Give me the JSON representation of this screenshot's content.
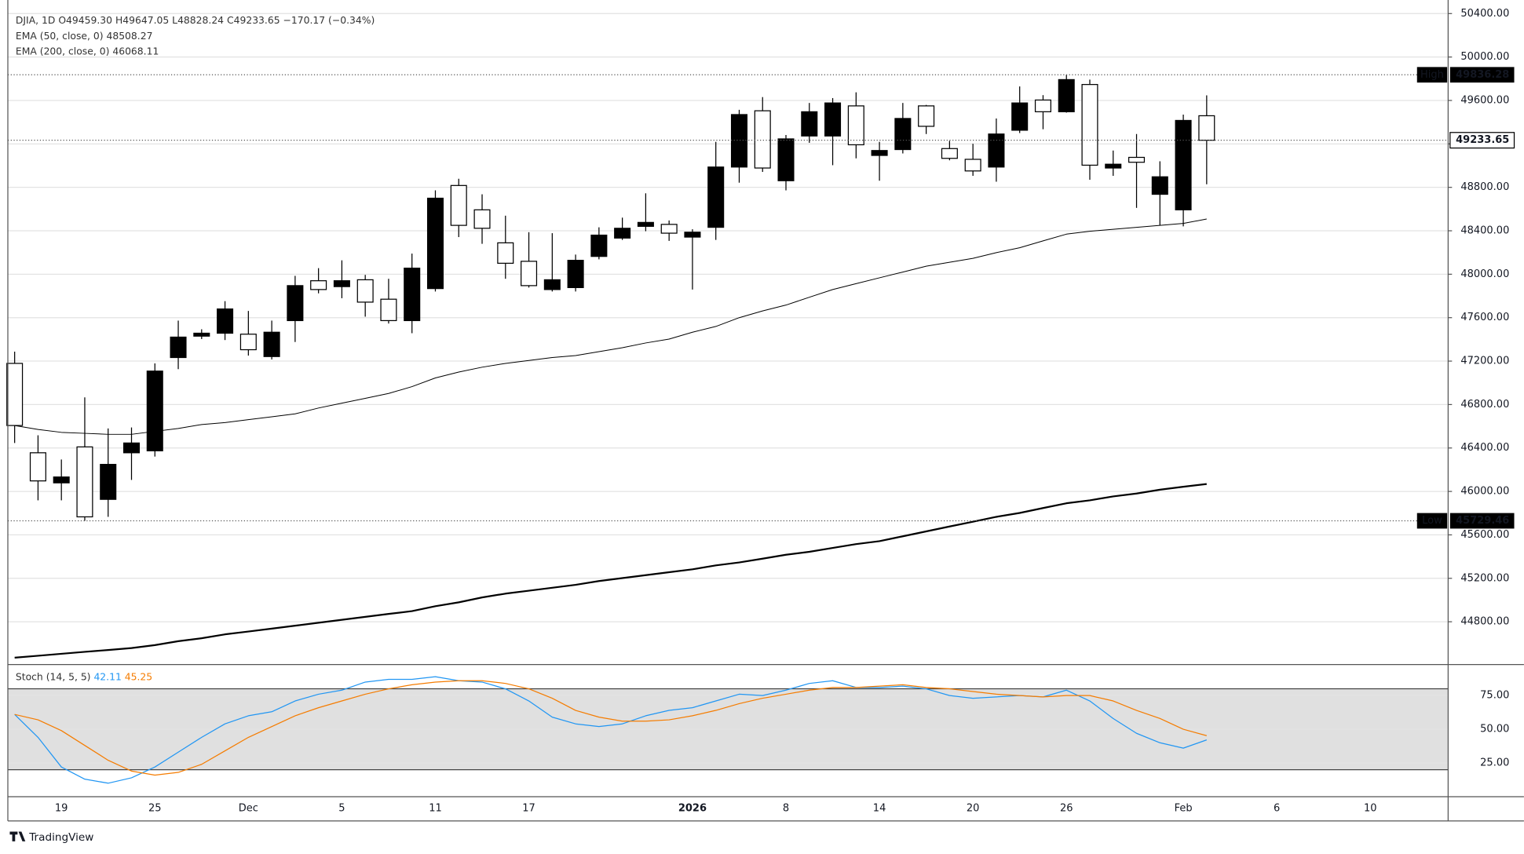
{
  "chart_data": [
    {
      "type": "candlestick",
      "title": "DJIA, 1D",
      "ohlc": [
        "O49459.30",
        "H49647.05",
        "L48828.24",
        "C49233.65"
      ],
      "change": "−170.17 (−0.34%)",
      "high_label": "High",
      "low_label": "Low",
      "categories": [
        null,
        null,
        "19",
        null,
        null,
        null,
        "25",
        null,
        null,
        null,
        "Dec",
        null,
        null,
        null,
        "5",
        null,
        null,
        null,
        "11",
        null,
        null,
        null,
        "17",
        null,
        null,
        null,
        null,
        null,
        null,
        "2026",
        null,
        null,
        null,
        "8",
        null,
        null,
        null,
        "14",
        null,
        null,
        null,
        "20",
        null,
        null,
        null,
        "26",
        null,
        null,
        null,
        null,
        "Feb",
        null,
        null,
        null,
        "6",
        null,
        null,
        null,
        "10",
        null,
        null,
        null
      ],
      "open": [
        47179,
        46356,
        46079,
        46410,
        45927,
        46356,
        46374,
        47233,
        47430,
        47457,
        47448,
        47242,
        47573,
        47940,
        47886,
        47949,
        47770,
        47573,
        47868,
        48817,
        48593,
        48289,
        48119,
        47859,
        47877,
        48164,
        48333,
        48441,
        48459,
        48342,
        48432,
        48987,
        49505,
        48861,
        49273,
        49273,
        49550,
        49094,
        49148,
        49550,
        49157,
        49058,
        48987,
        49326,
        49604,
        49496,
        49747,
        48978,
        49076,
        48736,
        48593,
        49459.3,
        null,
        null,
        null,
        null,
        null,
        null,
        null,
        null,
        null,
        null
      ],
      "high": [
        47287,
        46517,
        46294,
        46866,
        46580,
        46589,
        47179,
        47573,
        47493,
        47752,
        47662,
        47573,
        47985,
        48056,
        48128,
        47994,
        47958,
        48190,
        48772,
        48879,
        48736,
        48539,
        48387,
        48378,
        48181,
        48432,
        48521,
        48745,
        48495,
        48414,
        49219,
        49514,
        49631,
        49282,
        49577,
        49622,
        49675,
        49219,
        49577,
        49559,
        49228,
        49201,
        49434,
        49729,
        49649,
        49836.28,
        49792,
        49139,
        49291,
        49040,
        49470,
        49647.05,
        null,
        null,
        null,
        null,
        null,
        null,
        null,
        null,
        null,
        null
      ],
      "low": [
        46446,
        45918,
        45918,
        45729.46,
        45766,
        46106,
        46321,
        47126,
        47403,
        47394,
        47251,
        47215,
        47376,
        47824,
        47779,
        47609,
        47546,
        47457,
        47841,
        48342,
        48280,
        47958,
        47877,
        47841,
        47841,
        48137,
        48316,
        48396,
        48307,
        47859,
        48316,
        48843,
        48942,
        48772,
        49210,
        49004,
        49067,
        48861,
        49112,
        49291,
        49049,
        48906,
        48852,
        49300,
        49335,
        49488,
        48870,
        48906,
        48611,
        48450,
        48441,
        48828.24,
        null,
        null,
        null,
        null,
        null,
        null,
        null,
        null,
        null,
        null
      ],
      "close": [
        46607,
        46097,
        46133,
        45766,
        46249,
        46446,
        47108,
        47421,
        47457,
        47680,
        47305,
        47466,
        47895,
        47859,
        47940,
        47743,
        47573,
        48056,
        48700,
        48450,
        48423,
        48101,
        47895,
        47949,
        48128,
        48360,
        48423,
        48477,
        48378,
        48387,
        48987,
        49470,
        48978,
        49246,
        49496,
        49577,
        49192,
        49139,
        49434,
        49362,
        49067,
        48951,
        49291,
        49577,
        49496,
        49792,
        49004,
        49013,
        49031,
        48897,
        49416,
        49233.65,
        null,
        null,
        null,
        null,
        null,
        null,
        null,
        null,
        null,
        null
      ],
      "up_color": "#000000",
      "down_color": "#ffffff",
      "series": [
        {
          "name": "EMA (50, close, 0)",
          "color": "#000000",
          "values": [
            46607,
            46571,
            46544,
            46535,
            46526,
            46526,
            46553,
            46580,
            46616,
            46634,
            46661,
            46687,
            46714,
            46768,
            46813,
            46857,
            46902,
            46965,
            47045,
            47099,
            47144,
            47179,
            47206,
            47233,
            47251,
            47287,
            47323,
            47367,
            47403,
            47466,
            47519,
            47600,
            47662,
            47716,
            47788,
            47859,
            47913,
            47967,
            48020,
            48074,
            48110,
            48146,
            48199,
            48244,
            48307,
            48369,
            48396,
            48414,
            48432,
            48450,
            48468,
            48508.27,
            null,
            null,
            null,
            null,
            null,
            null,
            null,
            null,
            null,
            null
          ]
        },
        {
          "name": "EMA (200, close, 0)",
          "color": "#000000",
          "values": [
            44469,
            44487,
            44505,
            44523,
            44540,
            44558,
            44585,
            44621,
            44648,
            44684,
            44710,
            44737,
            44764,
            44791,
            44818,
            44845,
            44872,
            44898,
            44943,
            44979,
            45024,
            45059,
            45086,
            45113,
            45140,
            45175,
            45202,
            45229,
            45256,
            45283,
            45319,
            45346,
            45381,
            45417,
            45444,
            45480,
            45515,
            45542,
            45587,
            45632,
            45677,
            45721,
            45766,
            45802,
            45847,
            45891,
            45918,
            45954,
            45981,
            46016,
            46043,
            46068.11,
            null,
            null,
            null,
            null,
            null,
            null,
            null,
            null,
            null,
            null
          ]
        }
      ],
      "ylim": [
        44406,
        50525
      ],
      "yticks": [
        {
          "value": 50400,
          "label": "50400.00"
        },
        {
          "value": 50000,
          "label": "50000.00"
        },
        {
          "value": 49600,
          "label": "49600.00"
        },
        {
          "value": 49200,
          "label": "49200.00"
        },
        {
          "value": 48800,
          "label": "48800.00"
        },
        {
          "value": 48400,
          "label": "48400.00"
        },
        {
          "value": 48000,
          "label": "48000.00"
        },
        {
          "value": 47600,
          "label": "47600.00"
        },
        {
          "value": 47200,
          "label": "47200.00"
        },
        {
          "value": 46800,
          "label": "46800.00"
        },
        {
          "value": 46400,
          "label": "46400.00"
        },
        {
          "value": 46000,
          "label": "46000.00"
        },
        {
          "value": 45600,
          "label": "45600.00"
        },
        {
          "value": 45200,
          "label": "45200.00"
        },
        {
          "value": 44800,
          "label": "44800.00"
        }
      ],
      "grid": true
    },
    {
      "type": "line",
      "title": "Stoch (14, 5, 5)",
      "series": [
        {
          "color": "#2196f3",
          "values": [
            61,
            44,
            22,
            13,
            10,
            14,
            22,
            33,
            44,
            54,
            60,
            63,
            71,
            76,
            79,
            85,
            87,
            87,
            89,
            86,
            85,
            80,
            71,
            59,
            54,
            52,
            54,
            60,
            64,
            66,
            71,
            76,
            75,
            79,
            84,
            86,
            81,
            81,
            82,
            80,
            75,
            73,
            74,
            75,
            74,
            79,
            71,
            58,
            47,
            40,
            36,
            42.11,
            null,
            null,
            null,
            null,
            null,
            null,
            null,
            null,
            null,
            null
          ]
        },
        {
          "color": "#f57c00",
          "values": [
            61,
            57,
            49,
            38,
            27,
            19,
            16,
            18,
            24,
            34,
            44,
            52,
            60,
            66,
            71,
            76,
            80,
            83,
            85,
            86,
            86,
            84,
            80,
            73,
            64,
            59,
            56,
            56,
            57,
            60,
            64,
            69,
            73,
            76,
            79,
            81,
            81,
            82,
            83,
            81,
            80,
            78,
            76,
            75,
            74,
            75,
            75,
            71,
            64,
            58,
            50,
            45.25,
            null,
            null,
            null,
            null,
            null,
            null,
            null,
            null,
            null,
            null
          ]
        }
      ],
      "band": [
        20,
        80
      ],
      "band_color": "#e0e0e0",
      "ylim": [
        0,
        98
      ],
      "yticks": [
        {
          "value": 75,
          "label": "75.00"
        },
        {
          "value": 50,
          "label": "50.00"
        },
        {
          "value": 25,
          "label": "25.00"
        }
      ]
    }
  ],
  "footer": {
    "brand": "TradingView"
  }
}
